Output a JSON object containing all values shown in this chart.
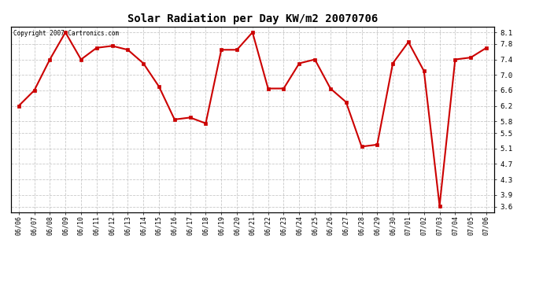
{
  "title": "Solar Radiation per Day KW/m2 20070706",
  "copyright": "Copyright 2007 Cartronics.com",
  "dates": [
    "06/06",
    "06/07",
    "06/08",
    "06/09",
    "06/10",
    "06/11",
    "06/12",
    "06/13",
    "06/14",
    "06/15",
    "06/16",
    "06/17",
    "06/18",
    "06/19",
    "06/20",
    "06/21",
    "06/22",
    "06/23",
    "06/24",
    "06/25",
    "06/26",
    "06/27",
    "06/28",
    "06/29",
    "06/30",
    "07/01",
    "07/02",
    "07/03",
    "07/04",
    "07/05",
    "07/06"
  ],
  "values": [
    6.2,
    6.6,
    7.4,
    8.1,
    7.4,
    7.7,
    7.75,
    7.65,
    7.3,
    6.7,
    5.85,
    5.9,
    5.75,
    7.65,
    7.65,
    8.1,
    6.65,
    6.65,
    7.3,
    7.4,
    6.65,
    6.3,
    5.15,
    5.2,
    7.3,
    7.85,
    7.1,
    3.62,
    7.4,
    7.45,
    7.7
  ],
  "line_color": "#cc0000",
  "marker_color": "#cc0000",
  "bg_color": "#ffffff",
  "plot_bg_color": "#ffffff",
  "grid_color": "#bbbbbb",
  "ylim_min": 3.45,
  "ylim_max": 8.25,
  "yticks": [
    3.6,
    3.9,
    4.3,
    4.7,
    5.1,
    5.5,
    5.8,
    6.2,
    6.6,
    7.0,
    7.4,
    7.8,
    8.1
  ]
}
